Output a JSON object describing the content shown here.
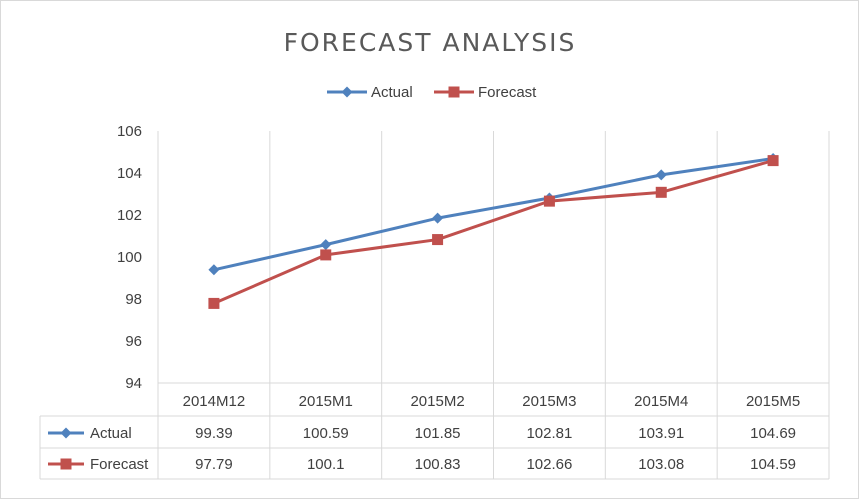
{
  "chart_data": {
    "type": "line",
    "title": "FORECAST ANALYSIS",
    "categories": [
      "2014M12",
      "2015M1",
      "2015M2",
      "2015M3",
      "2015M4",
      "2015M5"
    ],
    "series": [
      {
        "name": "Actual",
        "values": [
          99.39,
          100.59,
          101.85,
          102.81,
          103.91,
          104.69
        ],
        "color": "#4f81bd",
        "marker": "diamond"
      },
      {
        "name": "Forecast",
        "values": [
          97.79,
          100.1,
          100.83,
          102.66,
          103.08,
          104.59
        ],
        "color": "#c0504d",
        "marker": "square"
      }
    ],
    "ylim": [
      94,
      106
    ],
    "yticks": [
      "94",
      "96",
      "98",
      "100",
      "102",
      "104",
      "106"
    ],
    "data_table": {
      "rows": [
        {
          "label": "Actual",
          "values": [
            "99.39",
            "100.59",
            "101.85",
            "102.81",
            "103.91",
            "104.69"
          ]
        },
        {
          "label": "Forecast",
          "values": [
            "97.79",
            "100.1",
            "100.83",
            "102.66",
            "103.08",
            "104.59"
          ]
        }
      ]
    },
    "legend_position": "top",
    "grid": "vertical"
  }
}
